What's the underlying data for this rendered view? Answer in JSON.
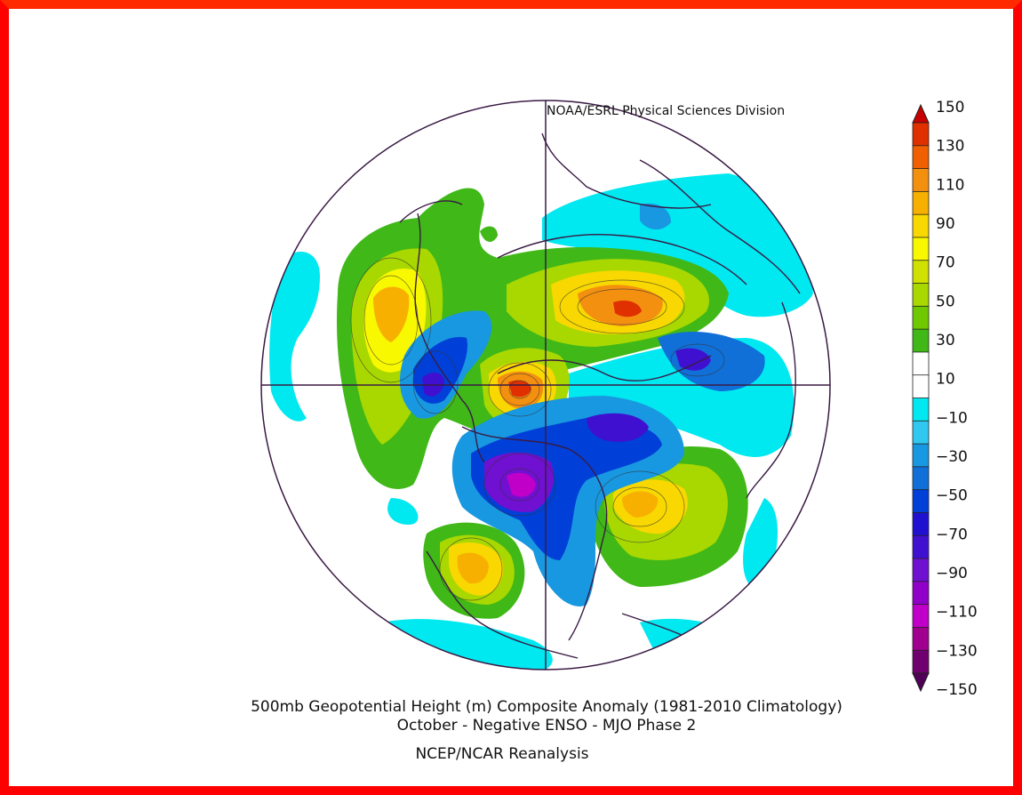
{
  "header": {
    "division": "NOAA/ESRL Physical Sciences Division"
  },
  "title": {
    "line1": "500mb Geopotential Height (m) Composite Anomaly (1981-2010 Climatology)",
    "line2": "October - Negative ENSO - MJO Phase 2",
    "source": "NCEP/NCAR Reanalysis"
  },
  "colorbar": {
    "labels": [
      "150",
      "130",
      "110",
      "90",
      "70",
      "50",
      "30",
      "10",
      "−10",
      "−30",
      "−50",
      "−70",
      "−90",
      "−110",
      "−130",
      "−150"
    ],
    "colors": [
      "#c80000",
      "#e03000",
      "#f06000",
      "#f49010",
      "#f8b000",
      "#f8d800",
      "#f8f800",
      "#d0e000",
      "#a8d800",
      "#70c800",
      "#40b818",
      "#ffffff",
      "#ffffff",
      "#00e8f0",
      "#30c8f0",
      "#1898e0",
      "#1070d8",
      "#0040d8",
      "#2010d0",
      "#4010d0",
      "#7010d0",
      "#9000c8",
      "#c000c8",
      "#a00090",
      "#700070",
      "#500058"
    ]
  },
  "map": {
    "projection": "polar-stereographic-north",
    "anomaly_centers": [
      {
        "sign": "positive",
        "value": 60,
        "region": "north-atlantic-greenland"
      },
      {
        "sign": "positive",
        "value": 90,
        "region": "northern-russia"
      },
      {
        "sign": "positive",
        "value": 110,
        "region": "arctic-siberia"
      },
      {
        "sign": "positive",
        "value": 70,
        "region": "north-pacific"
      },
      {
        "sign": "positive",
        "value": 50,
        "region": "western-north-america"
      },
      {
        "sign": "negative",
        "value": -80,
        "region": "west-europe"
      },
      {
        "sign": "negative",
        "value": -70,
        "region": "central-asia"
      },
      {
        "sign": "negative",
        "value": -110,
        "region": "canada-arctic"
      },
      {
        "sign": "negative",
        "value": -60,
        "region": "eastern-asia"
      }
    ]
  }
}
